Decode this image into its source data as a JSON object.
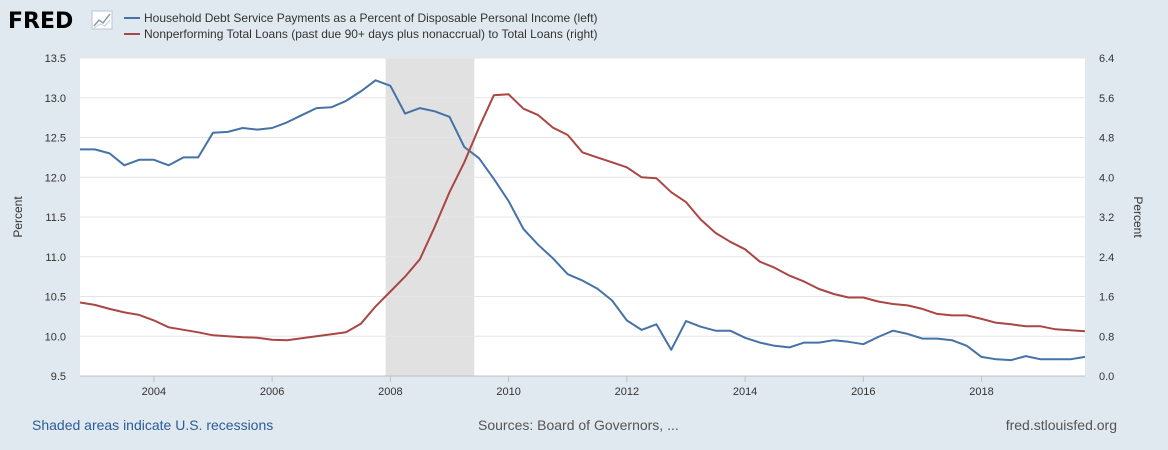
{
  "logo": {
    "text": "FRED"
  },
  "footer": {
    "recession_note": "Shaded areas indicate U.S. recessions",
    "sources": "Sources: Board of Governors, ...",
    "site": "fred.stlouisfed.org"
  },
  "colors": {
    "series1": "#4572a7",
    "series2": "#aa4643",
    "recession": "#e1e1e1",
    "plot_bg": "#ffffff",
    "gridline": "#e6e6e6"
  },
  "chart_data": {
    "type": "line",
    "left_axis": {
      "label": "Percent",
      "range": [
        9.5,
        13.5
      ],
      "ticks": [
        "9.5",
        "10.0",
        "10.5",
        "11.0",
        "11.5",
        "12.0",
        "12.5",
        "13.0",
        "13.5"
      ]
    },
    "right_axis": {
      "label": "Percent",
      "range": [
        0.0,
        6.4
      ],
      "ticks": [
        "0.0",
        "0.8",
        "1.6",
        "2.4",
        "3.2",
        "4.0",
        "4.8",
        "5.6",
        "6.4"
      ]
    },
    "x_range": [
      2002.75,
      2019.75
    ],
    "x_ticks": [
      "2004",
      "2006",
      "2008",
      "2010",
      "2012",
      "2014",
      "2016",
      "2018"
    ],
    "recessions": [
      [
        2007.92,
        2009.42
      ]
    ],
    "grid": true,
    "legend_position": "top-left",
    "series": [
      {
        "name": "Household Debt Service Payments as a Percent of Disposable Personal Income (left)",
        "axis": "left",
        "x": [
          2002.75,
          2003.0,
          2003.25,
          2003.5,
          2003.75,
          2004.0,
          2004.25,
          2004.5,
          2004.75,
          2005.0,
          2005.25,
          2005.5,
          2005.75,
          2006.0,
          2006.25,
          2006.5,
          2006.75,
          2007.0,
          2007.25,
          2007.5,
          2007.75,
          2008.0,
          2008.25,
          2008.5,
          2008.75,
          2009.0,
          2009.25,
          2009.5,
          2009.75,
          2010.0,
          2010.25,
          2010.5,
          2010.75,
          2011.0,
          2011.25,
          2011.5,
          2011.75,
          2012.0,
          2012.25,
          2012.5,
          2012.75,
          2013.0,
          2013.25,
          2013.5,
          2013.75,
          2014.0,
          2014.25,
          2014.5,
          2014.75,
          2015.0,
          2015.25,
          2015.5,
          2015.75,
          2016.0,
          2016.25,
          2016.5,
          2016.75,
          2017.0,
          2017.25,
          2017.5,
          2017.75,
          2018.0,
          2018.25,
          2018.5,
          2018.75,
          2019.0,
          2019.25,
          2019.5,
          2019.75
        ],
        "values": [
          12.35,
          12.35,
          12.3,
          12.15,
          12.22,
          12.22,
          12.15,
          12.25,
          12.25,
          12.56,
          12.57,
          12.62,
          12.6,
          12.62,
          12.69,
          12.78,
          12.87,
          12.88,
          12.96,
          13.08,
          13.22,
          13.15,
          12.8,
          12.87,
          12.83,
          12.76,
          12.38,
          12.24,
          11.98,
          11.7,
          11.35,
          11.15,
          10.98,
          10.78,
          10.7,
          10.6,
          10.45,
          10.2,
          10.08,
          10.15,
          9.83,
          10.19,
          10.12,
          10.07,
          10.07,
          9.98,
          9.92,
          9.88,
          9.86,
          9.92,
          9.92,
          9.95,
          9.93,
          9.9,
          9.99,
          10.07,
          10.03,
          9.97,
          9.97,
          9.95,
          9.88,
          9.74,
          9.71,
          9.7,
          9.75,
          9.71,
          9.71,
          9.71,
          9.74
        ]
      },
      {
        "name": "Nonperforming Total Loans (past due 90+ days plus nonaccrual) to Total Loans (right)",
        "axis": "right",
        "x": [
          2002.75,
          2003.0,
          2003.25,
          2003.5,
          2003.75,
          2004.0,
          2004.25,
          2004.5,
          2004.75,
          2005.0,
          2005.25,
          2005.5,
          2005.75,
          2006.0,
          2006.25,
          2006.5,
          2006.75,
          2007.0,
          2007.25,
          2007.5,
          2007.75,
          2008.0,
          2008.25,
          2008.5,
          2008.75,
          2009.0,
          2009.25,
          2009.5,
          2009.75,
          2010.0,
          2010.25,
          2010.5,
          2010.75,
          2011.0,
          2011.25,
          2011.5,
          2011.75,
          2012.0,
          2012.25,
          2012.5,
          2012.75,
          2013.0,
          2013.25,
          2013.5,
          2013.75,
          2014.0,
          2014.25,
          2014.5,
          2014.75,
          2015.0,
          2015.25,
          2015.5,
          2015.75,
          2016.0,
          2016.25,
          2016.5,
          2016.75,
          2017.0,
          2017.25,
          2017.5,
          2017.75,
          2018.0,
          2018.25,
          2018.5,
          2018.75,
          2019.0,
          2019.25,
          2019.5,
          2019.75
        ],
        "values": [
          1.48,
          1.43,
          1.35,
          1.28,
          1.23,
          1.12,
          0.98,
          0.93,
          0.88,
          0.82,
          0.8,
          0.78,
          0.77,
          0.73,
          0.72,
          0.76,
          0.8,
          0.84,
          0.88,
          1.05,
          1.4,
          1.7,
          2.0,
          2.35,
          3.0,
          3.7,
          4.3,
          5.0,
          5.65,
          5.67,
          5.38,
          5.25,
          5.0,
          4.85,
          4.5,
          4.4,
          4.3,
          4.2,
          4.0,
          3.98,
          3.7,
          3.5,
          3.15,
          2.88,
          2.7,
          2.55,
          2.3,
          2.18,
          2.02,
          1.9,
          1.75,
          1.65,
          1.58,
          1.58,
          1.5,
          1.45,
          1.42,
          1.35,
          1.25,
          1.22,
          1.22,
          1.15,
          1.07,
          1.04,
          1.0,
          1.0,
          0.94,
          0.92,
          0.9
        ]
      }
    ]
  }
}
